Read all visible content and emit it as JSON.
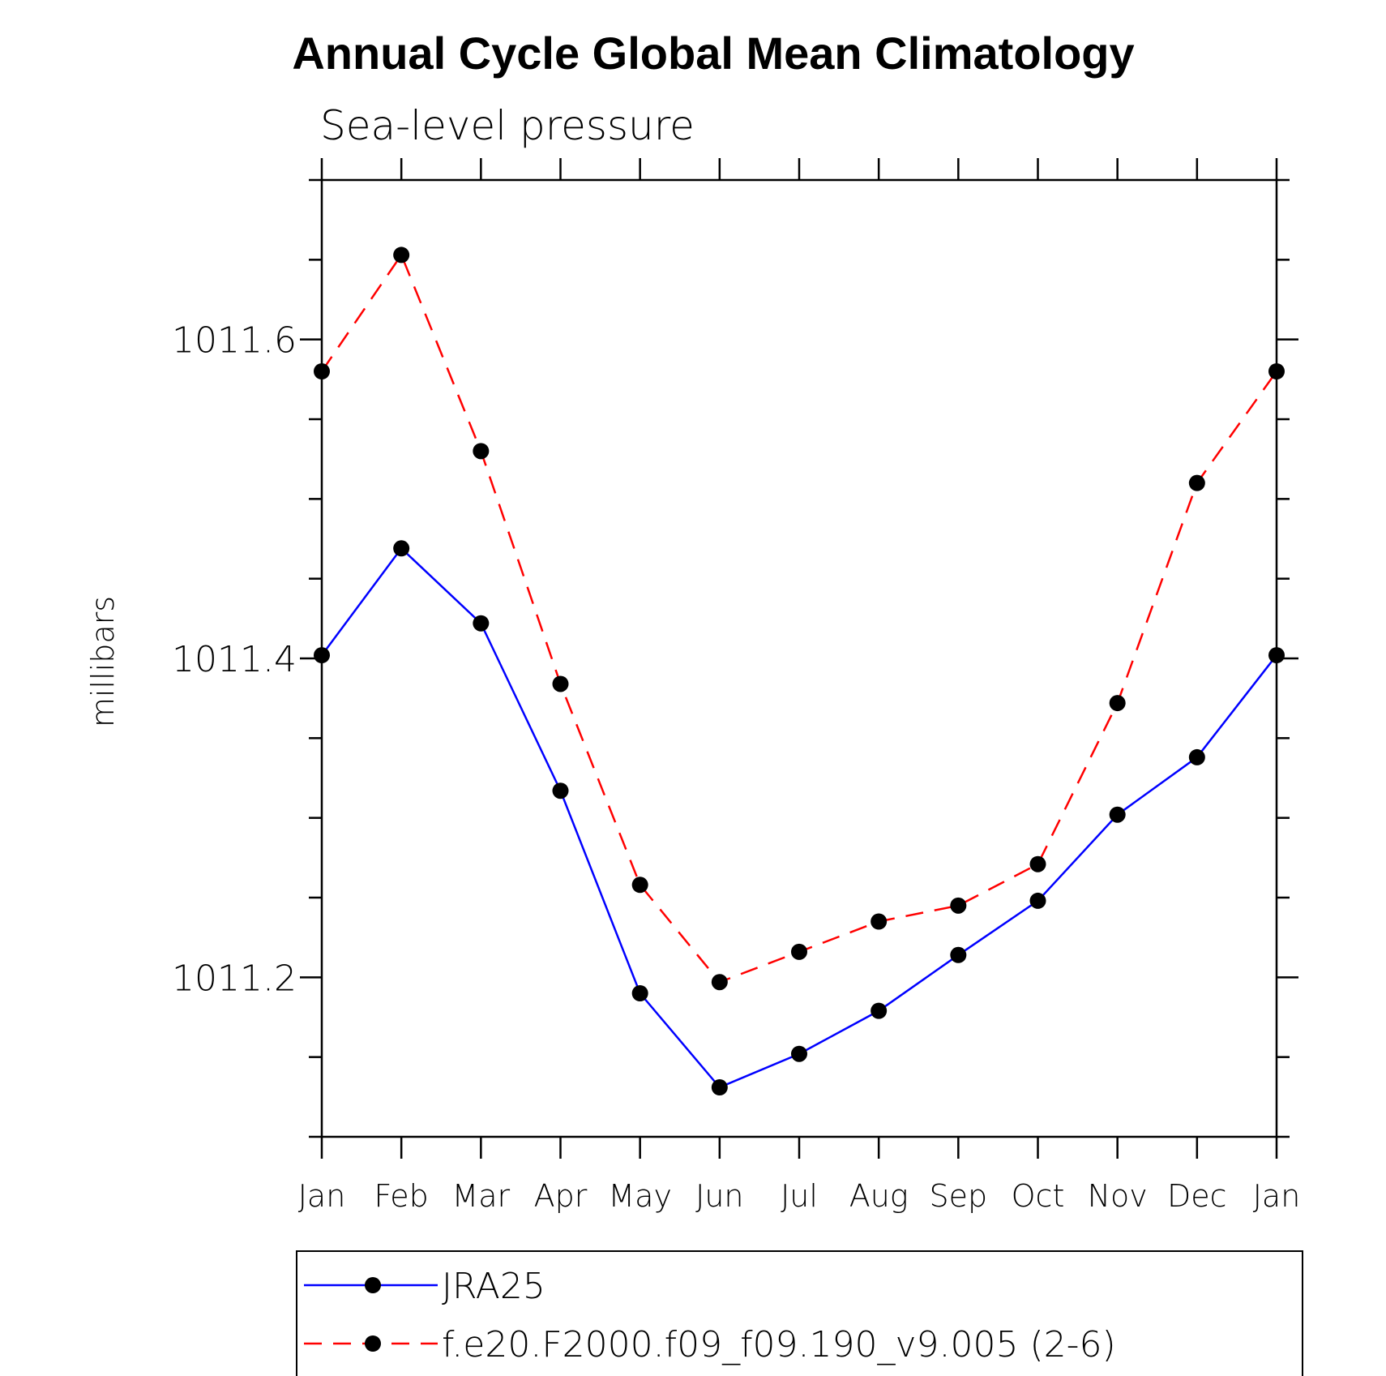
{
  "chart_data": {
    "type": "line",
    "title": "Annual Cycle Global Mean Climatology",
    "subtitle": "Sea-level pressure",
    "xlabel": "",
    "ylabel": "millibars",
    "categories": [
      "Jan",
      "Feb",
      "Mar",
      "Apr",
      "May",
      "Jun",
      "Jul",
      "Aug",
      "Sep",
      "Oct",
      "Nov",
      "Dec",
      "Jan"
    ],
    "ylim": [
      1011.1,
      1011.7
    ],
    "y_ticks": [
      "1011.2",
      "1011.4",
      "1011.6"
    ],
    "y_tick_values": [
      1011.2,
      1011.4,
      1011.6
    ],
    "series": [
      {
        "name": "JRA25",
        "color": "#0000ff",
        "dash": "solid",
        "values": [
          1011.402,
          1011.469,
          1011.422,
          1011.317,
          1011.19,
          1011.131,
          1011.152,
          1011.179,
          1011.214,
          1011.248,
          1011.302,
          1011.338,
          1011.402
        ]
      },
      {
        "name": "f.e20.F2000.f09_f09.190_v9.005 (2-6)",
        "color": "#ff0000",
        "dash": "dashed",
        "values": [
          1011.58,
          1011.653,
          1011.53,
          1011.384,
          1011.258,
          1011.197,
          1011.216,
          1011.235,
          1011.245,
          1011.271,
          1011.372,
          1011.51,
          1011.58
        ]
      }
    ],
    "marker": "filled-circle",
    "marker_color": "#000000",
    "grid": false,
    "legend_position": "bottom"
  }
}
